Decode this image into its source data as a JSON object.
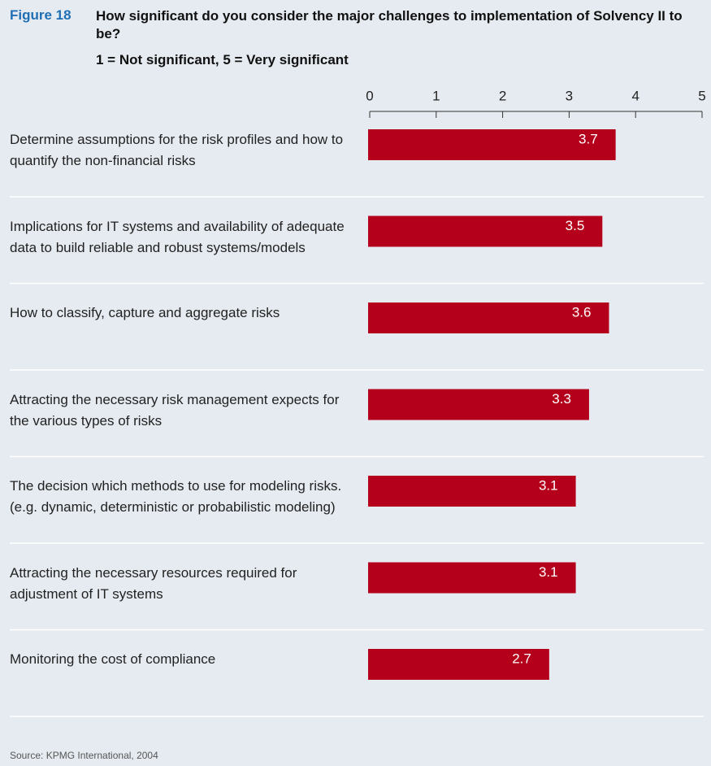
{
  "chart_data": {
    "type": "bar",
    "orientation": "horizontal",
    "figure_label": "Figure 18",
    "title": "How significant do you consider the major challenges to implementation of Solvency II to be?",
    "subtitle": "1 = Not significant, 5 = Very significant",
    "categories": [
      "Determine assumptions for the risk profiles and how to quantify the non-financial risks",
      "Implications for IT systems and availability of adequate data to build reliable and robust systems/models",
      "How to classify, capture and aggregate risks",
      "Attracting the necessary risk management expects for the various types of risks",
      "The decision which methods to use for modeling risks. (e.g. dynamic, deterministic or probabilistic modeling)",
      "Attracting the necessary resources required for adjustment of IT systems",
      "Monitoring the cost of compliance"
    ],
    "values": [
      3.7,
      3.5,
      3.6,
      3.3,
      3.1,
      3.1,
      2.7
    ],
    "color": "#b5001c",
    "xlim": [
      0,
      5
    ],
    "xticks": [
      0,
      1,
      2,
      3,
      4,
      5
    ],
    "source": "Source: KPMG International, 2004"
  }
}
